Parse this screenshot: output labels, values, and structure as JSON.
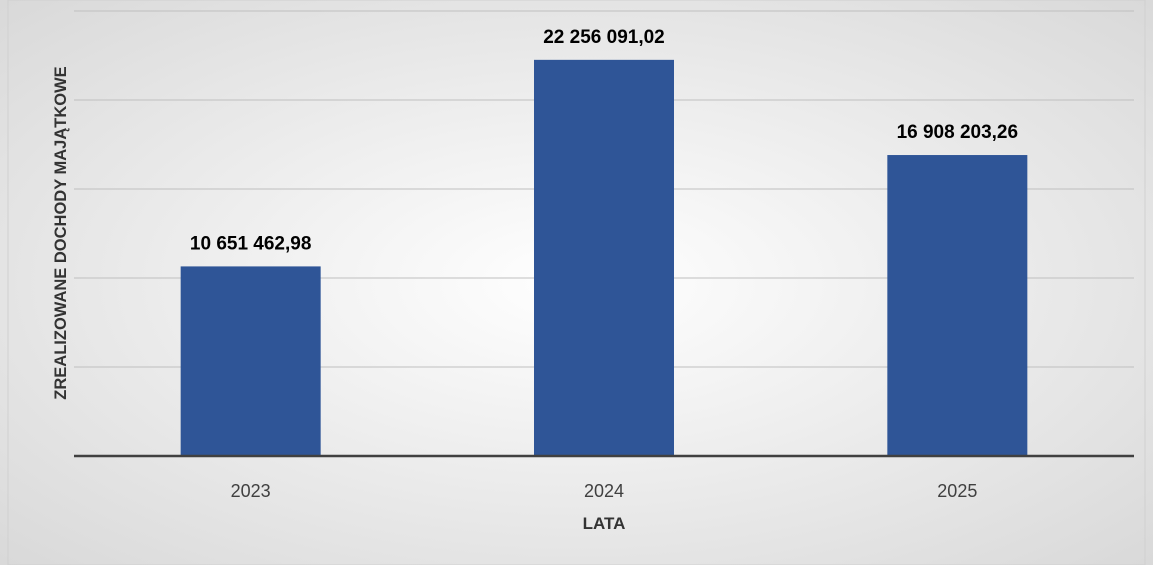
{
  "chart_data": {
    "type": "bar",
    "title": "",
    "xlabel": "LATA",
    "ylabel": "ZREALIZOWANE DOCHODY MAJĄTKOWE",
    "categories": [
      "2023",
      "2024",
      "2025"
    ],
    "values": [
      10651462.98,
      22256091.02,
      16908203.26
    ],
    "data_labels": [
      "10 651 462,98",
      "22 256 091,02",
      "16 908 203,26"
    ],
    "ylim": [
      0,
      25000000
    ],
    "ytick_step": 5000000,
    "y_tick_labels_visible": false,
    "grid": true,
    "legend": "none",
    "colors": {
      "bar": "#2F5597",
      "background_center": "#FFFFFF",
      "background_edge": "#D9D9D9",
      "gridline": "#BFBFBF",
      "axis": "#404040",
      "data_label": "#000000",
      "tick_label": "#404040"
    }
  }
}
